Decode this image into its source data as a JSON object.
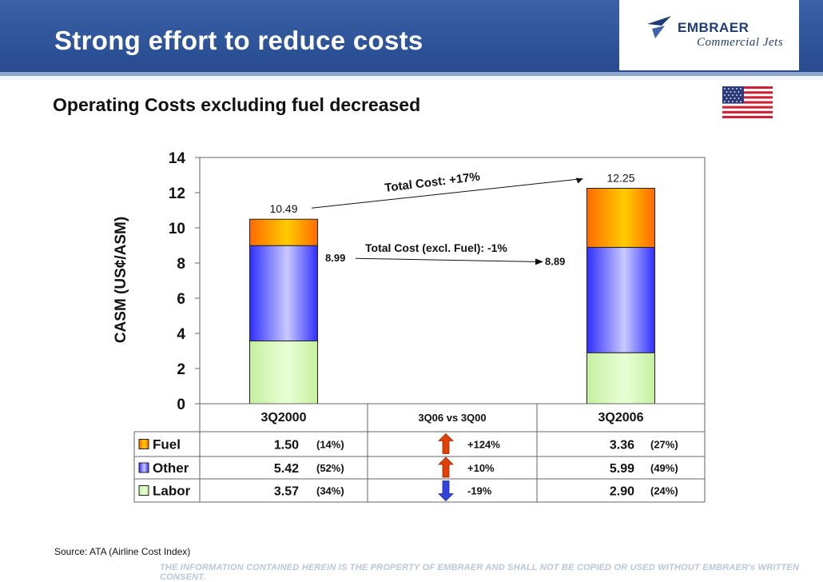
{
  "slide": {
    "title": "Strong effort to reduce costs",
    "subtitle": "Operating Costs excluding fuel decreased",
    "source": "Source: ATA (Airline Cost Index)",
    "disclaimer": "THE INFORMATION CONTAINED HEREIN IS THE PROPERTY OF EMBRAER AND SHALL NOT BE COPIED OR USED WITHOUT EMBRAER's WRITTEN CONSENT.",
    "logo": {
      "brand": "EMBRAER",
      "division": "Commercial Jets",
      "icon": "embraer-logo-icon"
    },
    "flag_icon": "us-flag-icon"
  },
  "chart_data": {
    "type": "bar",
    "stacked": true,
    "ylabel": "CASM (US¢/ASM)",
    "ylim": [
      0,
      14
    ],
    "yticks": [
      "0",
      "2",
      "4",
      "6",
      "8",
      "10",
      "12",
      "14"
    ],
    "categories": [
      "3Q2000",
      "3Q2006"
    ],
    "middle_column_label": "3Q06 vs 3Q00",
    "series": [
      {
        "name": "Labor",
        "values": [
          3.57,
          2.9
        ],
        "color": "#ccffaa"
      },
      {
        "name": "Other",
        "values": [
          5.42,
          5.99
        ],
        "color": "#3333ff"
      },
      {
        "name": "Fuel",
        "values": [
          1.5,
          3.36
        ],
        "color": "#ff6600"
      }
    ],
    "totals": [
      "10.49",
      "12.25"
    ],
    "excl_fuel_totals": [
      "8.99",
      "8.89"
    ],
    "annotations": {
      "total_cost": "Total Cost: +17%",
      "total_excl_fuel": "Total Cost (excl. Fuel): -1%"
    },
    "table": {
      "rows": [
        {
          "name": "Fuel",
          "v2000": "1.50",
          "p2000": "(14%)",
          "change": "+124%",
          "direction": "up",
          "v2006": "3.36",
          "p2006": "(27%)"
        },
        {
          "name": "Other",
          "v2000": "5.42",
          "p2000": "(52%)",
          "change": "+10%",
          "direction": "up",
          "v2006": "5.99",
          "p2006": "(49%)"
        },
        {
          "name": "Labor",
          "v2000": "3.57",
          "p2000": "(34%)",
          "change": "-19%",
          "direction": "down",
          "v2006": "2.90",
          "p2006": "(24%)"
        }
      ]
    }
  }
}
